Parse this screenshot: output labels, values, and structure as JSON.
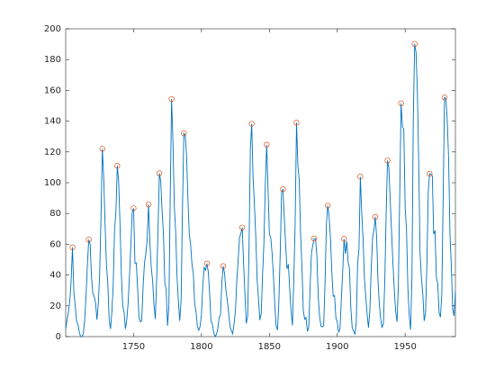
{
  "chart_data": {
    "type": "line",
    "x": [
      1700,
      1701,
      1702,
      1703,
      1704,
      1705,
      1706,
      1707,
      1708,
      1709,
      1710,
      1711,
      1712,
      1713,
      1714,
      1715,
      1716,
      1717,
      1718,
      1719,
      1720,
      1721,
      1722,
      1723,
      1724,
      1725,
      1726,
      1727,
      1728,
      1729,
      1730,
      1731,
      1732,
      1733,
      1734,
      1735,
      1736,
      1737,
      1738,
      1739,
      1740,
      1741,
      1742,
      1743,
      1744,
      1745,
      1746,
      1747,
      1748,
      1749,
      1750,
      1751,
      1752,
      1753,
      1754,
      1755,
      1756,
      1757,
      1758,
      1759,
      1760,
      1761,
      1762,
      1763,
      1764,
      1765,
      1766,
      1767,
      1768,
      1769,
      1770,
      1771,
      1772,
      1773,
      1774,
      1775,
      1776,
      1777,
      1778,
      1779,
      1780,
      1781,
      1782,
      1783,
      1784,
      1785,
      1786,
      1787,
      1788,
      1789,
      1790,
      1791,
      1792,
      1793,
      1794,
      1795,
      1796,
      1797,
      1798,
      1799,
      1800,
      1801,
      1802,
      1803,
      1804,
      1805,
      1806,
      1807,
      1808,
      1809,
      1810,
      1811,
      1812,
      1813,
      1814,
      1815,
      1816,
      1817,
      1818,
      1819,
      1820,
      1821,
      1822,
      1823,
      1824,
      1825,
      1826,
      1827,
      1828,
      1829,
      1830,
      1831,
      1832,
      1833,
      1834,
      1835,
      1836,
      1837,
      1838,
      1839,
      1840,
      1841,
      1842,
      1843,
      1844,
      1845,
      1846,
      1847,
      1848,
      1849,
      1850,
      1851,
      1852,
      1853,
      1854,
      1855,
      1856,
      1857,
      1858,
      1859,
      1860,
      1861,
      1862,
      1863,
      1864,
      1865,
      1866,
      1867,
      1868,
      1869,
      1870,
      1871,
      1872,
      1873,
      1874,
      1875,
      1876,
      1877,
      1878,
      1879,
      1880,
      1881,
      1882,
      1883,
      1884,
      1885,
      1886,
      1887,
      1888,
      1889,
      1890,
      1891,
      1892,
      1893,
      1894,
      1895,
      1896,
      1897,
      1898,
      1899,
      1900,
      1901,
      1902,
      1903,
      1904,
      1905,
      1906,
      1907,
      1908,
      1909,
      1910,
      1911,
      1912,
      1913,
      1914,
      1915,
      1916,
      1917,
      1918,
      1919,
      1920,
      1921,
      1922,
      1923,
      1924,
      1925,
      1926,
      1927,
      1928,
      1929,
      1930,
      1931,
      1932,
      1933,
      1934,
      1935,
      1936,
      1937,
      1938,
      1939,
      1940,
      1941,
      1942,
      1943,
      1944,
      1945,
      1946,
      1947,
      1948,
      1949,
      1950,
      1951,
      1952,
      1953,
      1954,
      1955,
      1956,
      1957,
      1958,
      1959,
      1960,
      1961,
      1962,
      1963,
      1964,
      1965,
      1966,
      1967,
      1968,
      1969,
      1970,
      1971,
      1972,
      1973,
      1974,
      1975,
      1976,
      1977,
      1978,
      1979,
      1980,
      1981,
      1982,
      1983,
      1984,
      1985,
      1986,
      1987
    ],
    "series": [
      {
        "color": "#0072bd",
        "values": [
          5,
          11,
          16,
          23,
          36,
          58,
          29,
          20,
          10,
          8,
          3,
          0,
          0,
          2,
          11,
          27,
          47,
          63,
          60,
          39,
          28,
          26,
          22,
          11,
          21,
          40,
          78,
          122,
          103,
          73,
          47,
          35,
          11,
          5,
          16,
          34,
          70,
          81,
          111,
          101,
          73,
          40,
          20,
          16,
          5,
          11,
          22,
          40,
          60,
          80.9,
          83.4,
          47.7,
          47.8,
          30.7,
          12.2,
          9.6,
          10.2,
          32.4,
          47.6,
          54,
          62.9,
          85.9,
          61.2,
          45.1,
          36.4,
          20.9,
          11.4,
          37.8,
          69.8,
          106.1,
          100.8,
          81.6,
          66.5,
          34.8,
          30.6,
          7,
          19.8,
          92.5,
          154.4,
          125.9,
          84.8,
          68.1,
          38.5,
          22.8,
          10.2,
          24.1,
          82.9,
          132,
          130.9,
          118.1,
          89.9,
          66.6,
          60,
          46.9,
          41,
          21.3,
          16,
          6.4,
          4.1,
          6.8,
          14.5,
          34,
          45,
          43.1,
          47.5,
          42.2,
          28.1,
          10.1,
          8.1,
          2.5,
          0,
          1.4,
          5,
          12.2,
          13.9,
          35.4,
          45.8,
          41.1,
          30.1,
          23.9,
          15.6,
          6.6,
          4,
          1.8,
          8.5,
          16.6,
          36.3,
          49.6,
          64.2,
          67,
          70.9,
          47.8,
          27.5,
          8.5,
          13.2,
          56.9,
          121.5,
          138.3,
          103.2,
          85.7,
          64.6,
          36.7,
          24.2,
          10.7,
          15,
          40.1,
          61.5,
          98.5,
          124.7,
          96.3,
          66.6,
          64.5,
          54.1,
          39,
          20.6,
          6.7,
          4.3,
          22.7,
          54.8,
          93.8,
          95.8,
          77.2,
          59.1,
          44,
          47,
          30.5,
          16.3,
          7.3,
          37.6,
          74,
          139,
          111.2,
          101.6,
          66.2,
          44.7,
          17,
          11.3,
          12.4,
          3.4,
          6,
          32.3,
          54.3,
          59.7,
          63.7,
          63.5,
          52.2,
          25.4,
          13.1,
          6.8,
          6.3,
          7.1,
          35.6,
          73,
          85.1,
          78,
          64,
          41.8,
          26.2,
          26.7,
          12.1,
          9.5,
          2.7,
          5,
          24.4,
          42,
          63.5,
          53.8,
          62,
          48.5,
          43.9,
          18.6,
          5.7,
          3.6,
          1.4,
          9.6,
          47.4,
          57.1,
          103.9,
          80.6,
          63.6,
          37.6,
          26.1,
          14.2,
          5.8,
          16.7,
          44.3,
          63.9,
          69,
          77.8,
          64.9,
          35.7,
          21.2,
          11.1,
          5.7,
          8.7,
          36.1,
          79.7,
          114.4,
          109.6,
          88.8,
          67.8,
          47.5,
          30.6,
          16.3,
          9.6,
          33.2,
          92.6,
          151.6,
          136.3,
          134.7,
          83.9,
          69.4,
          31.5,
          13.9,
          4.4,
          38,
          141.7,
          190.2,
          184.8,
          159,
          112.3,
          53.9,
          37.6,
          27.9,
          10.2,
          15.1,
          47,
          93.8,
          105.9,
          105.5,
          104.5,
          66.6,
          68.9,
          38,
          34.5,
          15.5,
          12.6,
          27.5,
          92.5,
          155.4,
          154.6,
          140.4,
          115.9,
          66.6,
          45.9,
          17.9,
          13.4,
          29.4
        ]
      },
      {
        "color": "#d95319",
        "marker": "o",
        "line": false,
        "x": [
          1705,
          1717,
          1727,
          1738,
          1750,
          1761,
          1769,
          1778,
          1787,
          1804,
          1816,
          1830,
          1837,
          1848,
          1860,
          1870,
          1883,
          1893,
          1905,
          1917,
          1928,
          1937,
          1947,
          1957,
          1968,
          1979
        ],
        "values": [
          58,
          63,
          122,
          111,
          83.4,
          85.9,
          106.1,
          154.4,
          132,
          47.5,
          45.8,
          70.9,
          138.3,
          124.7,
          95.8,
          139,
          63.7,
          85.1,
          63.5,
          103.9,
          77.8,
          114.4,
          151.6,
          190.2,
          105.9,
          155.4
        ]
      }
    ],
    "xlim": [
      1700,
      1987
    ],
    "ylim": [
      0,
      200
    ],
    "xticks": [
      1750,
      1800,
      1850,
      1900,
      1950
    ],
    "yticks": [
      0,
      20,
      40,
      60,
      80,
      100,
      120,
      140,
      160,
      180,
      200
    ]
  }
}
